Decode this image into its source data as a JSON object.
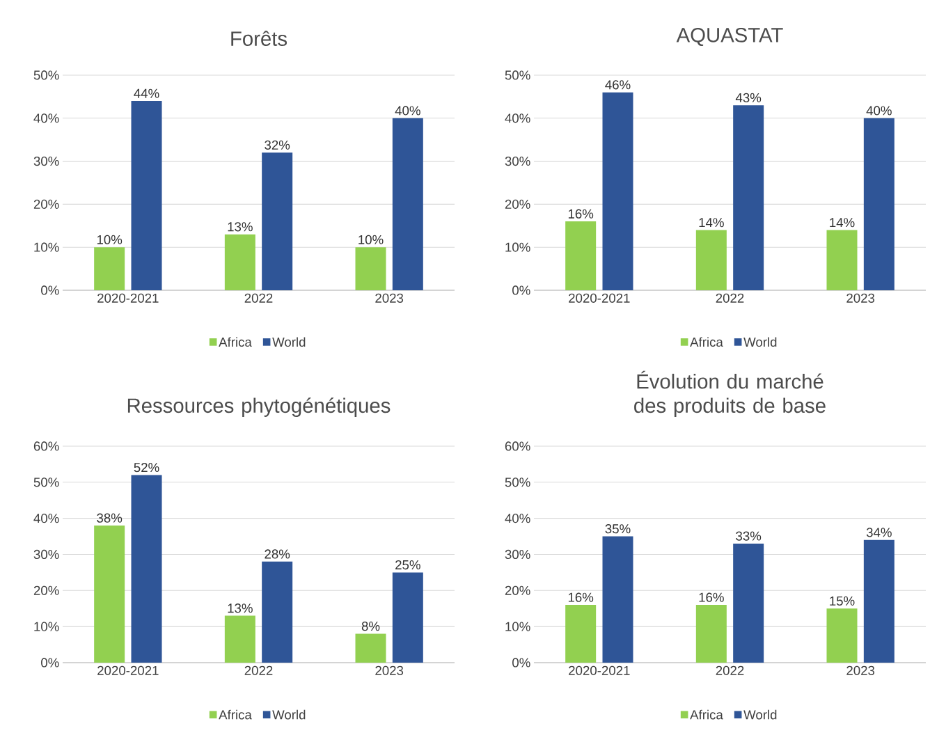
{
  "chart_data": [
    {
      "type": "bar",
      "title": "Forêts",
      "categories": [
        "2020-2021",
        "2022",
        "2023"
      ],
      "legend": "bottom",
      "grid": "y",
      "ylim": [
        0,
        50
      ],
      "yticks": [
        {
          "value": 0,
          "label": "0%"
        },
        {
          "value": 10,
          "label": "10%"
        },
        {
          "value": 20,
          "label": "20%"
        },
        {
          "value": 30,
          "label": "30%"
        },
        {
          "value": 40,
          "label": "40%"
        },
        {
          "value": 50,
          "label": "50%"
        }
      ],
      "series": [
        {
          "name": "Africa",
          "color": "#92d050",
          "values": [
            10,
            13,
            10
          ],
          "value_labels": [
            "10%",
            "13%",
            "10%"
          ]
        },
        {
          "name": "World",
          "color": "#2f5597",
          "values": [
            44,
            32,
            40
          ],
          "value_labels": [
            "44%",
            "32%",
            "40%"
          ]
        }
      ]
    },
    {
      "type": "bar",
      "title": "AQUASTAT",
      "categories": [
        "2020-2021",
        "2022",
        "2023"
      ],
      "legend": "bottom",
      "grid": "y",
      "ylim": [
        0,
        50
      ],
      "yticks": [
        {
          "value": 0,
          "label": "0%"
        },
        {
          "value": 10,
          "label": "10%"
        },
        {
          "value": 20,
          "label": "20%"
        },
        {
          "value": 30,
          "label": "30%"
        },
        {
          "value": 40,
          "label": "40%"
        },
        {
          "value": 50,
          "label": "50%"
        }
      ],
      "series": [
        {
          "name": "Africa",
          "color": "#92d050",
          "values": [
            16,
            14,
            14
          ],
          "value_labels": [
            "16%",
            "14%",
            "14%"
          ]
        },
        {
          "name": "World",
          "color": "#2f5597",
          "values": [
            46,
            43,
            40
          ],
          "value_labels": [
            "46%",
            "43%",
            "40%"
          ]
        }
      ]
    },
    {
      "type": "bar",
      "title": "Ressources phytogénétiques",
      "categories": [
        "2020-2021",
        "2022",
        "2023"
      ],
      "legend": "bottom",
      "grid": "y",
      "ylim": [
        0,
        60
      ],
      "yticks": [
        {
          "value": 0,
          "label": "0%"
        },
        {
          "value": 10,
          "label": "10%"
        },
        {
          "value": 20,
          "label": "20%"
        },
        {
          "value": 30,
          "label": "30%"
        },
        {
          "value": 40,
          "label": "40%"
        },
        {
          "value": 50,
          "label": "50%"
        },
        {
          "value": 60,
          "label": "60%"
        }
      ],
      "series": [
        {
          "name": "Africa",
          "color": "#92d050",
          "values": [
            38,
            13,
            8
          ],
          "value_labels": [
            "38%",
            "13%",
            "8%"
          ]
        },
        {
          "name": "World",
          "color": "#2f5597",
          "values": [
            52,
            28,
            25
          ],
          "value_labels": [
            "52%",
            "28%",
            "25%"
          ]
        }
      ]
    },
    {
      "type": "bar",
      "title": "Évolution du marché des produits de base",
      "categories": [
        "2020-2021",
        "2022",
        "2023"
      ],
      "legend": "bottom",
      "grid": "y",
      "ylim": [
        0,
        60
      ],
      "yticks": [
        {
          "value": 0,
          "label": "0%"
        },
        {
          "value": 10,
          "label": "10%"
        },
        {
          "value": 20,
          "label": "20%"
        },
        {
          "value": 30,
          "label": "30%"
        },
        {
          "value": 40,
          "label": "40%"
        },
        {
          "value": 50,
          "label": "50%"
        },
        {
          "value": 60,
          "label": "60%"
        }
      ],
      "series": [
        {
          "name": "Africa",
          "color": "#92d050",
          "values": [
            16,
            16,
            15
          ],
          "value_labels": [
            "16%",
            "16%",
            "15%"
          ]
        },
        {
          "name": "World",
          "color": "#2f5597",
          "values": [
            35,
            33,
            34
          ],
          "value_labels": [
            "35%",
            "33%",
            "34%"
          ]
        }
      ]
    }
  ]
}
